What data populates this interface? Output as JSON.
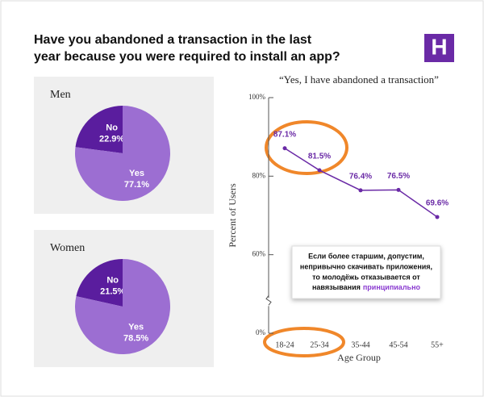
{
  "title": "Have you abandoned a transaction in the last year because you were required to install an app?",
  "logo": "H",
  "chart_data": [
    {
      "type": "pie",
      "title": "Men",
      "categories": [
        "No",
        "Yes"
      ],
      "values": [
        22.9,
        77.1
      ],
      "value_labels": [
        "22.9%",
        "77.1%"
      ],
      "colors": [
        "#5a1d9e",
        "#9c6ed2"
      ]
    },
    {
      "type": "pie",
      "title": "Women",
      "categories": [
        "No",
        "Yes"
      ],
      "values": [
        21.5,
        78.5
      ],
      "value_labels": [
        "21.5%",
        "78.5%"
      ],
      "colors": [
        "#5a1d9e",
        "#9c6ed2"
      ]
    },
    {
      "type": "line",
      "title": "“Yes, I have abandoned a transaction”",
      "categories": [
        "18-24",
        "25-34",
        "35-44",
        "45-54",
        "55+"
      ],
      "values": [
        87.1,
        81.5,
        76.4,
        76.5,
        69.6
      ],
      "value_labels": [
        "87.1%",
        "81.5%",
        "76.4%",
        "76.5%",
        "69.6%"
      ],
      "color": "#6a2aa6",
      "xlabel": "Age Group",
      "ylabel": "Percent of Users",
      "ylim": [
        0,
        100
      ],
      "axis_break": true,
      "yticks": [
        {
          "value": 0,
          "label": "0%"
        },
        {
          "value": 60,
          "label": "60%"
        },
        {
          "value": 80,
          "label": "80%"
        },
        {
          "value": 100,
          "label": "100%"
        }
      ]
    }
  ],
  "annotation": {
    "lines": [
      "Если более старшим, допустим,",
      "непривычно скачивать приложения,",
      "то молодёжь отказывается от"
    ],
    "last_line": "навязывания",
    "highlight": "принципиально"
  }
}
